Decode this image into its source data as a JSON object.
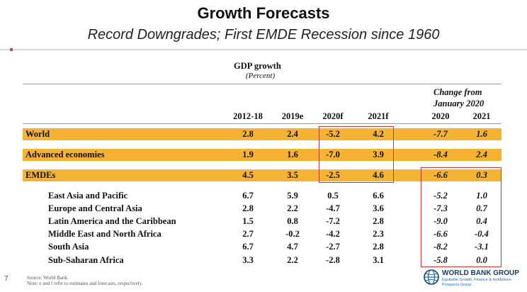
{
  "slide": {
    "title": "Growth Forecasts",
    "subtitle": "Record Downgrades; First EMDE Recession since 1960",
    "page_number": "7"
  },
  "table": {
    "title": "GDP growth",
    "unit": "(Percent)",
    "change_header": "Change from January 2020",
    "change_header_line1": "Change from",
    "change_header_line2": "January 2020",
    "columns": [
      "2012-18",
      "2019e",
      "2020f",
      "2021f",
      "2020",
      "2021"
    ],
    "highlighted_rows": [
      {
        "label": "World",
        "values": [
          "2.8",
          "2.4",
          "-5.2",
          "4.2",
          "-7.7",
          "1.6"
        ]
      },
      {
        "label": "Advanced economies",
        "values": [
          "1.9",
          "1.6",
          "-7.0",
          "3.9",
          "-8.4",
          "2.4"
        ]
      },
      {
        "label": "EMDEs",
        "values": [
          "4.5",
          "3.5",
          "-2.5",
          "4.6",
          "-6.6",
          "0.3"
        ]
      }
    ],
    "regional_rows": [
      {
        "label": "East Asia and Pacific",
        "values": [
          "6.7",
          "5.9",
          "0.5",
          "6.6",
          "-5.2",
          "1.0"
        ]
      },
      {
        "label": "Europe and Central Asia",
        "values": [
          "2.8",
          "2.2",
          "-4.7",
          "3.6",
          "-7.3",
          "0.7"
        ]
      },
      {
        "label": "Latin America and the Caribbean",
        "values": [
          "1.5",
          "0.8",
          "-7.2",
          "2.8",
          "-9.0",
          "0.4"
        ]
      },
      {
        "label": "Middle East and North Africa",
        "values": [
          "2.7",
          "-0.2",
          "-4.2",
          "2.3",
          "-6.6",
          "-0.4"
        ]
      },
      {
        "label": "South Asia",
        "values": [
          "6.7",
          "4.7",
          "-2.7",
          "2.8",
          "-8.2",
          "-3.1"
        ]
      },
      {
        "label": "Sub-Saharan Africa",
        "values": [
          "3.3",
          "2.2",
          "-2.8",
          "3.1",
          "-5.8",
          "0.0"
        ]
      }
    ]
  },
  "footer": {
    "source": "Source: World Bank.",
    "note": "Note: e and f refer to estimates and forecasts, respectively."
  },
  "logo": {
    "name": "WORLD BANK GROUP",
    "tagline": "Equitable Growth, Finance & Institutions",
    "unit": "Prospects Group"
  },
  "colors": {
    "highlight_band": "#f6b233",
    "box_outline": "#c0392b",
    "logo_blue": "#1a3a6b"
  }
}
